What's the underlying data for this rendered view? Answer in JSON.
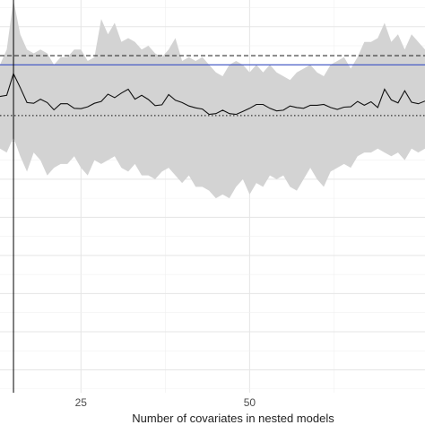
{
  "chart_data": {
    "type": "line",
    "title": "",
    "xlabel": "Number of covariates in nested models",
    "ylabel": "",
    "xlim": [
      13,
      76
    ],
    "ylim": [
      -0.76,
      0.27
    ],
    "x_ticks": [
      25,
      50
    ],
    "grid": true,
    "legend": "none",
    "colors": {
      "line": "#111111",
      "band": "#d3d3d3",
      "reference": "#3a4fc4",
      "dashed": "#333333",
      "dotted": "#333333",
      "vline": "#000000",
      "grid": "#e5e5e5"
    },
    "reference_levels": {
      "solid_blue": 0.1,
      "dashed": 0.124,
      "dotted": -0.033
    },
    "vertical_line_x": 15,
    "series": [
      {
        "x": [
          13,
          14,
          15,
          16,
          17,
          18,
          19,
          20,
          21,
          22,
          23,
          24,
          25,
          26,
          27,
          28,
          29,
          30,
          31,
          32,
          33,
          34,
          35,
          36,
          37,
          38,
          39,
          40,
          41,
          42,
          43,
          44,
          45,
          46,
          47,
          48,
          49,
          50,
          51,
          52,
          53,
          54,
          55,
          56,
          57,
          58,
          59,
          60,
          61,
          62,
          63,
          64,
          65,
          66,
          67,
          68,
          69,
          70,
          71,
          72,
          73,
          74,
          75,
          76
        ],
        "y": [
          0.017,
          0.02,
          0.077,
          0.04,
          0.001,
          -0.001,
          0.01,
          0.001,
          -0.018,
          -0.002,
          -0.002,
          -0.014,
          -0.015,
          -0.01,
          -0.001,
          0.004,
          0.023,
          0.014,
          0.026,
          0.036,
          0.01,
          0.02,
          0.009,
          -0.007,
          -0.005,
          0.022,
          0.007,
          0.001,
          -0.008,
          -0.013,
          -0.016,
          -0.03,
          -0.028,
          -0.019,
          -0.028,
          -0.03,
          -0.022,
          -0.014,
          -0.004,
          -0.004,
          -0.014,
          -0.021,
          -0.019,
          -0.008,
          -0.012,
          -0.014,
          -0.006,
          -0.006,
          -0.004,
          -0.012,
          -0.017,
          -0.011,
          -0.01,
          0.004,
          -0.006,
          0.003,
          -0.012,
          0.036,
          0.008,
          0.0,
          0.032,
          0.002,
          -0.002,
          0.005
        ],
        "upper": [
          0.1,
          0.14,
          0.27,
          0.18,
          0.14,
          0.13,
          0.14,
          0.13,
          0.1,
          0.12,
          0.12,
          0.14,
          0.14,
          0.11,
          0.12,
          0.22,
          0.18,
          0.21,
          0.16,
          0.17,
          0.16,
          0.14,
          0.15,
          0.13,
          0.12,
          0.14,
          0.17,
          0.11,
          0.12,
          0.11,
          0.12,
          0.1,
          0.08,
          0.07,
          0.1,
          0.11,
          0.1,
          0.08,
          0.1,
          0.08,
          0.1,
          0.08,
          0.07,
          0.06,
          0.08,
          0.09,
          0.1,
          0.08,
          0.07,
          0.1,
          0.11,
          0.12,
          0.09,
          0.12,
          0.16,
          0.16,
          0.17,
          0.21,
          0.16,
          0.18,
          0.14,
          0.18,
          0.16,
          0.14
        ],
        "lower": [
          -0.12,
          -0.13,
          -0.09,
          -0.14,
          -0.18,
          -0.13,
          -0.15,
          -0.19,
          -0.17,
          -0.16,
          -0.16,
          -0.14,
          -0.17,
          -0.19,
          -0.15,
          -0.16,
          -0.15,
          -0.14,
          -0.17,
          -0.18,
          -0.16,
          -0.19,
          -0.19,
          -0.2,
          -0.18,
          -0.17,
          -0.19,
          -0.21,
          -0.19,
          -0.22,
          -0.22,
          -0.23,
          -0.25,
          -0.24,
          -0.25,
          -0.22,
          -0.2,
          -0.24,
          -0.21,
          -0.22,
          -0.19,
          -0.2,
          -0.19,
          -0.22,
          -0.23,
          -0.2,
          -0.17,
          -0.2,
          -0.22,
          -0.18,
          -0.17,
          -0.16,
          -0.17,
          -0.14,
          -0.13,
          -0.13,
          -0.12,
          -0.13,
          -0.14,
          -0.13,
          -0.15,
          -0.12,
          -0.13,
          -0.12
        ]
      }
    ]
  }
}
